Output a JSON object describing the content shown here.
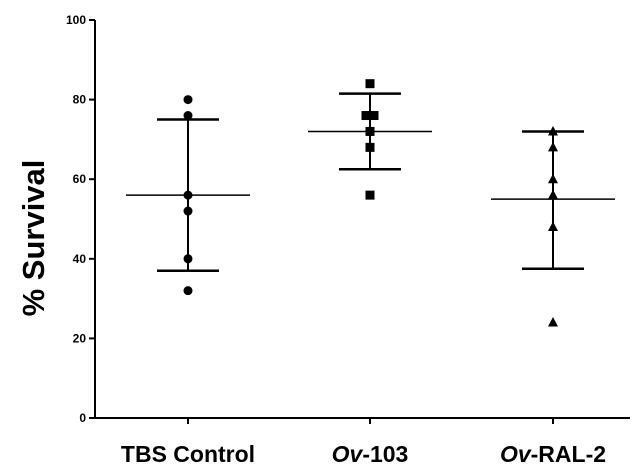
{
  "chart_data": {
    "type": "scatter",
    "title": "",
    "xlabel": "",
    "ylabel": "% Survival",
    "ylim": [
      0,
      100
    ],
    "yticks": [
      0,
      20,
      40,
      60,
      80,
      100
    ],
    "grid": false,
    "legend": "none",
    "categories": [
      {
        "label": "TBS Control",
        "prefix": "",
        "italic": "",
        "suffix": "TBS Control",
        "marker": "circle"
      },
      {
        "label": "Ov-103",
        "prefix": "",
        "italic": "Ov",
        "suffix": "-103",
        "marker": "square"
      },
      {
        "label": "Ov-RAL-2",
        "prefix": "",
        "italic": "Ov",
        "suffix": "-RAL-2",
        "marker": "triangle"
      }
    ],
    "series": [
      {
        "category": "TBS Control",
        "values": [
          80,
          76,
          56,
          52,
          40,
          32
        ],
        "mean": 56,
        "sd_upper": 75,
        "sd_lower": 37
      },
      {
        "category": "Ov-103",
        "values": [
          84,
          76,
          76,
          72,
          68,
          56
        ],
        "mean": 72,
        "sd_upper": 81.5,
        "sd_lower": 62.5
      },
      {
        "category": "Ov-RAL-2",
        "values": [
          72,
          68,
          60,
          56,
          48,
          24
        ],
        "mean": 55,
        "sd_upper": 72,
        "sd_lower": 37.5
      }
    ],
    "colors": {
      "marks": "#000000",
      "background": "#ffffff"
    }
  }
}
